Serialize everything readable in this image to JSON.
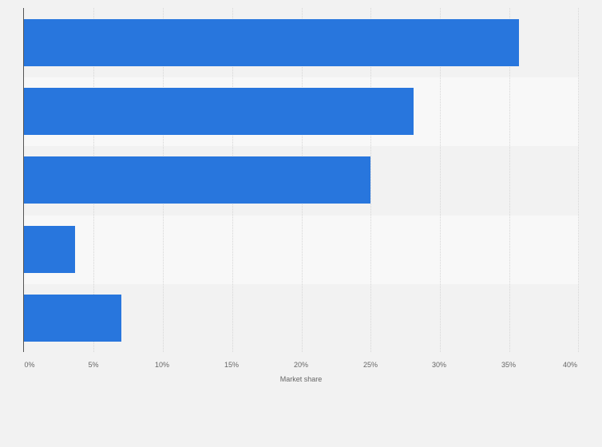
{
  "chart_data": {
    "type": "bar",
    "orientation": "horizontal",
    "title": "",
    "xlabel": "Market share",
    "ylabel": "",
    "categories": [
      "",
      "",
      "",
      "",
      ""
    ],
    "values": [
      35.7,
      28.1,
      25.0,
      3.7,
      7.0
    ],
    "xlim": [
      0,
      40
    ],
    "x_ticks": [
      "0%",
      "5%",
      "10%",
      "15%",
      "20%",
      "25%",
      "30%",
      "35%",
      "40%"
    ],
    "grid": true,
    "legend": null,
    "bar_color": "#2876dd"
  },
  "axis": {
    "xlabel": "Market share",
    "ticks": [
      "0%",
      "5%",
      "10%",
      "15%",
      "20%",
      "25%",
      "30%",
      "35%",
      "40%"
    ]
  }
}
